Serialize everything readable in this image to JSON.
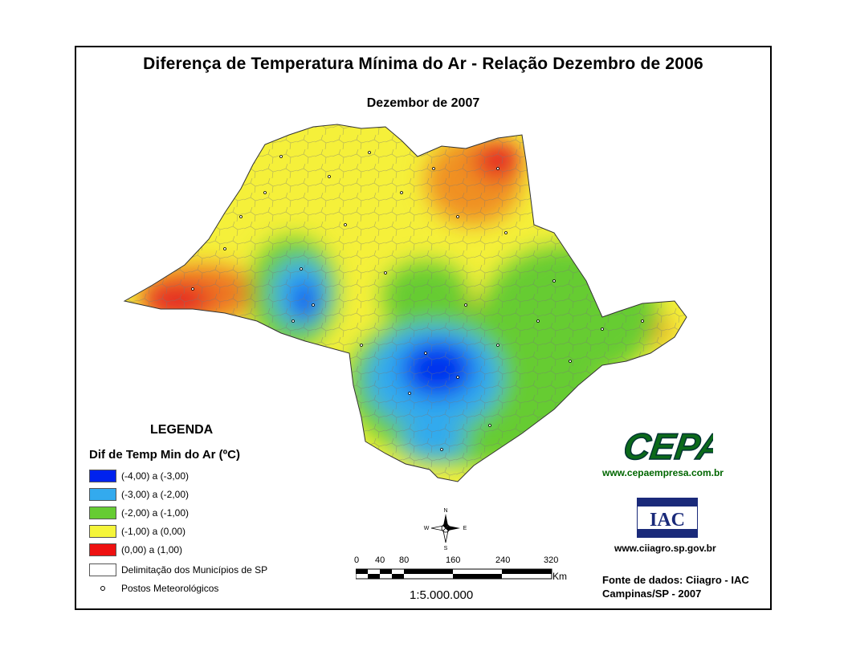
{
  "title": "Diferença de Temperatura Mínima do Ar - Relação Dezembro de 2006",
  "subtitle": "Dezembor de 2007",
  "legend": {
    "heading": "LEGENDA",
    "subheading": "Dif de Temp Min do Ar (ºC)",
    "items": [
      {
        "label": "(-4,00) a (-3,00)",
        "color": "#0022ee"
      },
      {
        "label": "(-3,00) a (-2,00)",
        "color": "#33aaee"
      },
      {
        "label": "(-2,00) a (-1,00)",
        "color": "#66cc33"
      },
      {
        "label": "(-1,00) a (0,00)",
        "color": "#f5f53a"
      },
      {
        "label": "(0,00) a (1,00)",
        "color": "#ee1111"
      }
    ],
    "municipios_label": "Delimitação dos Municípios de SP",
    "postos_label": "Postos Meteorológicos"
  },
  "compass": {
    "n": "N",
    "s": "S",
    "e": "E",
    "w": "W"
  },
  "scale": {
    "ticks": [
      "0",
      "40",
      "80",
      "160",
      "240",
      "320"
    ],
    "unit": "Km",
    "ratio": "1:5.000.000"
  },
  "cepa": {
    "logo_text": "CEPA",
    "url": "www.cepaempresa.com.br"
  },
  "iac": {
    "logo_text": "IAC",
    "url": "www.ciiagro.sp.gov.br"
  },
  "fonte": {
    "line1": "Fonte de dados: Ciiagro - IAC",
    "line2": "Campinas/SP - 2007"
  }
}
